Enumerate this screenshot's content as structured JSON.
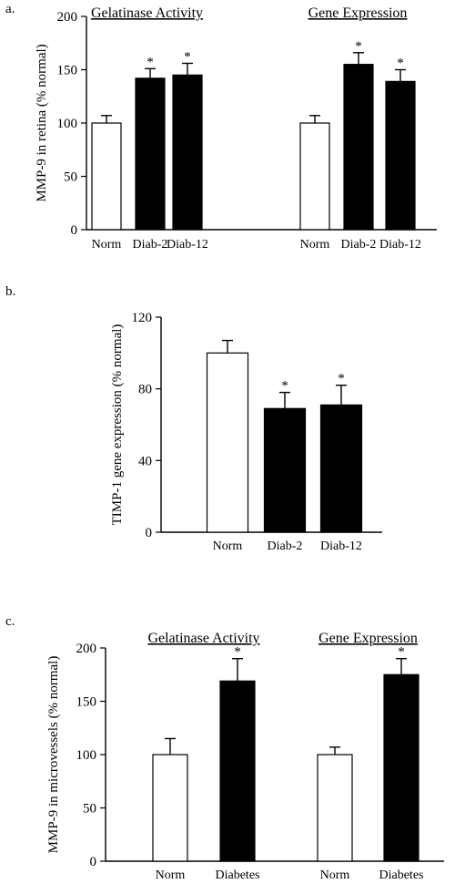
{
  "chart_data": [
    {
      "panel_label": "a.",
      "type": "bar",
      "ylabel": "MMP-9 in retina (% normal)",
      "ylim": [
        0,
        200
      ],
      "yticks": [
        0,
        50,
        100,
        150,
        200
      ],
      "groups": [
        {
          "title": "Gelatinase Activity",
          "categories": [
            "Norm",
            "Diab-2",
            "Diab-12"
          ],
          "values": [
            100,
            142,
            145
          ],
          "errors": [
            7,
            9,
            11
          ],
          "fills": [
            "#ffffff",
            "#000000",
            "#000000"
          ],
          "significance": [
            "",
            "*",
            "*"
          ]
        },
        {
          "title": "Gene Expression",
          "categories": [
            "Norm",
            "Diab-2",
            "Diab-12"
          ],
          "values": [
            100,
            155,
            139
          ],
          "errors": [
            7,
            11,
            11
          ],
          "fills": [
            "#ffffff",
            "#000000",
            "#000000"
          ],
          "significance": [
            "",
            "*",
            "*"
          ]
        }
      ]
    },
    {
      "panel_label": "b.",
      "type": "bar",
      "ylabel": "TIMP-1 gene expression (% normal)",
      "ylim": [
        0,
        120
      ],
      "yticks": [
        0,
        40,
        80,
        120
      ],
      "groups": [
        {
          "title": "",
          "categories": [
            "Norm",
            "Diab-2",
            "Diab-12"
          ],
          "values": [
            100,
            69,
            71
          ],
          "errors": [
            7,
            9,
            11
          ],
          "fills": [
            "#ffffff",
            "#000000",
            "#000000"
          ],
          "significance": [
            "",
            "*",
            "*"
          ]
        }
      ]
    },
    {
      "panel_label": "c.",
      "type": "bar",
      "ylabel": "MMP-9 in microvessels (% normal)",
      "ylim": [
        0,
        200
      ],
      "yticks": [
        0,
        50,
        100,
        150,
        200
      ],
      "groups": [
        {
          "title": "Gelatinase Activity",
          "categories": [
            "Norm",
            "Diabetes"
          ],
          "values": [
            100,
            169
          ],
          "errors": [
            15,
            21
          ],
          "fills": [
            "#ffffff",
            "#000000"
          ],
          "significance": [
            "",
            "*"
          ]
        },
        {
          "title": "Gene Expression",
          "categories": [
            "Norm",
            "Diabetes"
          ],
          "values": [
            100,
            175
          ],
          "errors": [
            7,
            15
          ],
          "fills": [
            "#ffffff",
            "#000000"
          ],
          "significance": [
            "",
            "*"
          ]
        }
      ]
    }
  ]
}
